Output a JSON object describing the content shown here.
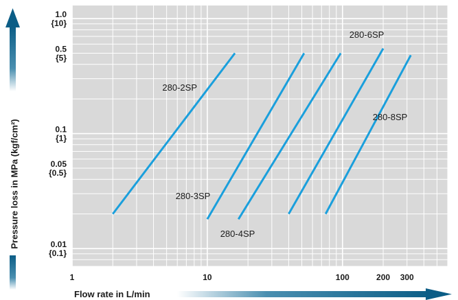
{
  "chart_data": {
    "type": "line",
    "scale": {
      "x": "log",
      "y": "log"
    },
    "xlim": [
      1,
      600
    ],
    "ylim": [
      0.007,
      1.3
    ],
    "grid": true,
    "xlabel": "Flow rate in L/min",
    "ylabel": "Pressure loss in MPa (kgf/cm²)",
    "x_ticks": [
      {
        "value": 1,
        "label": "1"
      },
      {
        "value": 10,
        "label": "10"
      },
      {
        "value": 100,
        "label": "100"
      },
      {
        "value": 200,
        "label": "200"
      },
      {
        "value": 300,
        "label": "300"
      }
    ],
    "y_ticks": [
      {
        "value": 1.0,
        "label": "1.0",
        "sublabel": "{10}"
      },
      {
        "value": 0.5,
        "label": "0.5",
        "sublabel": "{5}"
      },
      {
        "value": 0.1,
        "label": "0.1",
        "sublabel": "{1}"
      },
      {
        "value": 0.05,
        "label": "0.05",
        "sublabel": "{0.5}"
      },
      {
        "value": 0.01,
        "label": "0.01",
        "sublabel": "{0.1}"
      }
    ],
    "series": [
      {
        "name": "280-2SP",
        "x": [
          2.0,
          16.0
        ],
        "y": [
          0.02,
          0.5
        ]
      },
      {
        "name": "280-3SP",
        "x": [
          10.0,
          52.0
        ],
        "y": [
          0.018,
          0.5
        ]
      },
      {
        "name": "280-4SP",
        "x": [
          17.0,
          97.0
        ],
        "y": [
          0.018,
          0.5
        ]
      },
      {
        "name": "280-6SP",
        "x": [
          40.0,
          200.0
        ],
        "y": [
          0.02,
          0.55
        ]
      },
      {
        "name": "280-8SP",
        "x": [
          75.0,
          320.0
        ],
        "y": [
          0.02,
          0.48
        ]
      }
    ],
    "line_color": "#1a9fdc",
    "grid_color": "#ffffff",
    "plot_background": "#d9d9d9",
    "arrow_color": "#0b5d86"
  }
}
